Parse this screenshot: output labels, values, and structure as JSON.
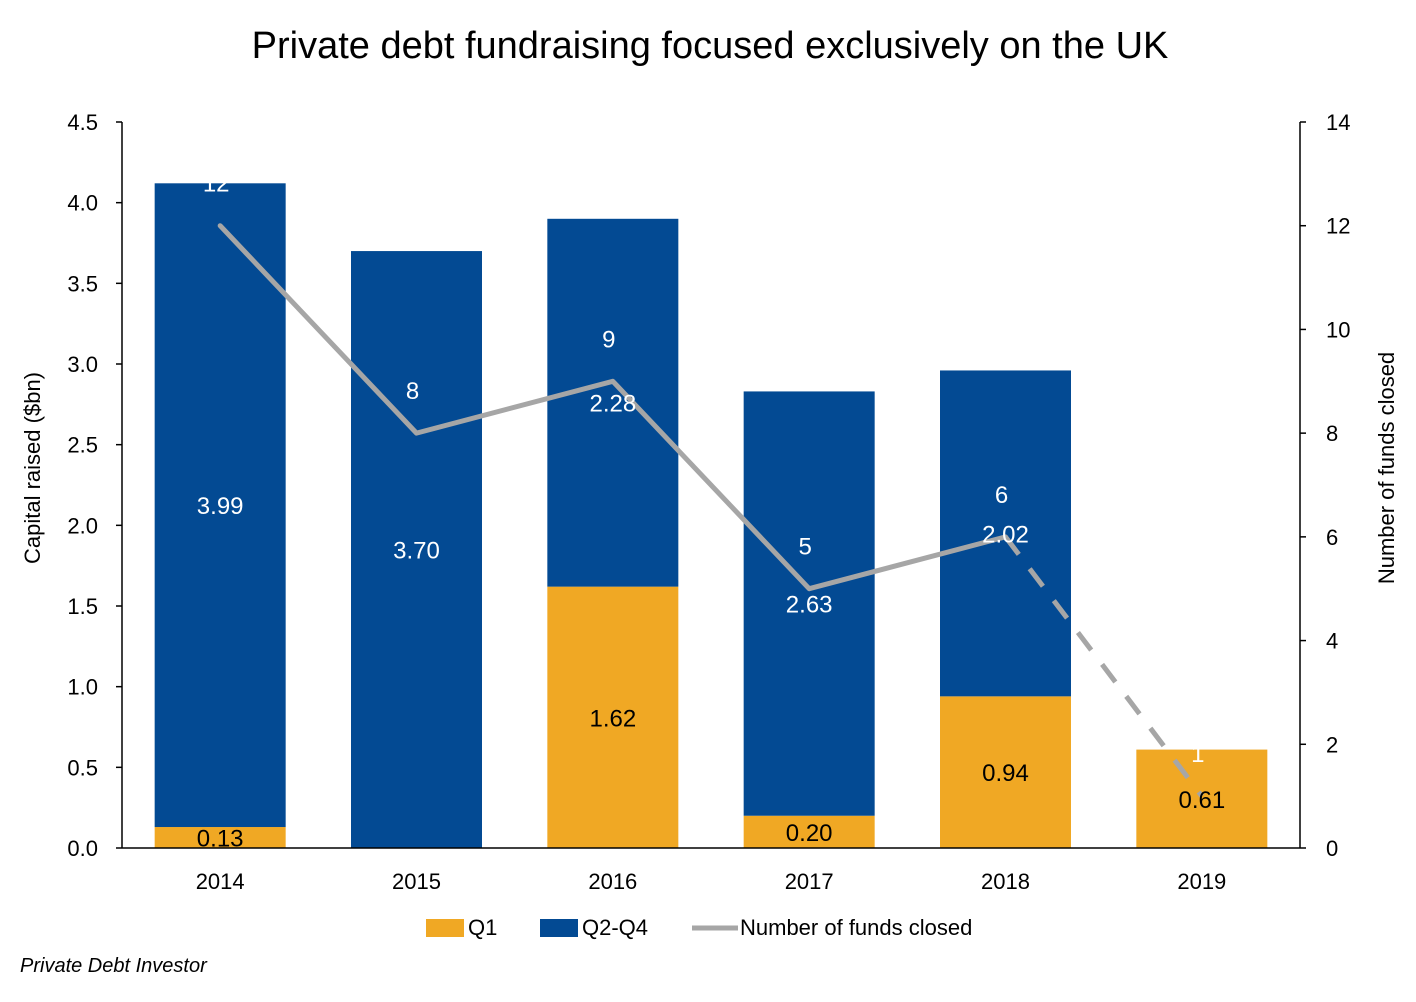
{
  "chart_data": {
    "type": "bar",
    "title": "Private debt fundraising focused exclusively on the UK",
    "categories": [
      "2014",
      "2015",
      "2016",
      "2017",
      "2018",
      "2019"
    ],
    "series": [
      {
        "name": "Q1",
        "type": "bar",
        "axis": "left",
        "color": "#F0A824",
        "values": [
          0.13,
          null,
          1.62,
          0.2,
          0.94,
          0.61
        ],
        "labels": [
          "0.13",
          "",
          "1.62",
          "0.20",
          "0.94",
          "0.61"
        ]
      },
      {
        "name": "Q2-Q4",
        "type": "bar",
        "axis": "left",
        "color": "#034A93",
        "values": [
          3.99,
          3.7,
          2.28,
          2.63,
          2.02,
          null
        ],
        "labels": [
          "3.99",
          "3.70",
          "2.28",
          "2.63",
          "2.02",
          ""
        ]
      },
      {
        "name": "Number of funds closed",
        "type": "line",
        "axis": "right",
        "color": "#A6A6A6",
        "values": [
          12,
          8,
          9,
          5,
          6,
          1
        ],
        "labels": [
          "12",
          "8",
          "9",
          "5",
          "6",
          "1"
        ],
        "dashed_last_segment": true
      }
    ],
    "ylabel": "Capital raised ($bn)",
    "ylim": [
      0,
      4.5
    ],
    "yticks": [
      "0.0",
      "0.5",
      "1.0",
      "1.5",
      "2.0",
      "2.5",
      "3.0",
      "3.5",
      "4.0",
      "4.5"
    ],
    "y2label": "Number of funds closed",
    "y2lim": [
      0,
      14
    ],
    "y2ticks": [
      "0",
      "2",
      "4",
      "6",
      "8",
      "10",
      "12",
      "14"
    ],
    "grid": false,
    "legend_position": "bottom",
    "source": "Private Debt Investor"
  }
}
